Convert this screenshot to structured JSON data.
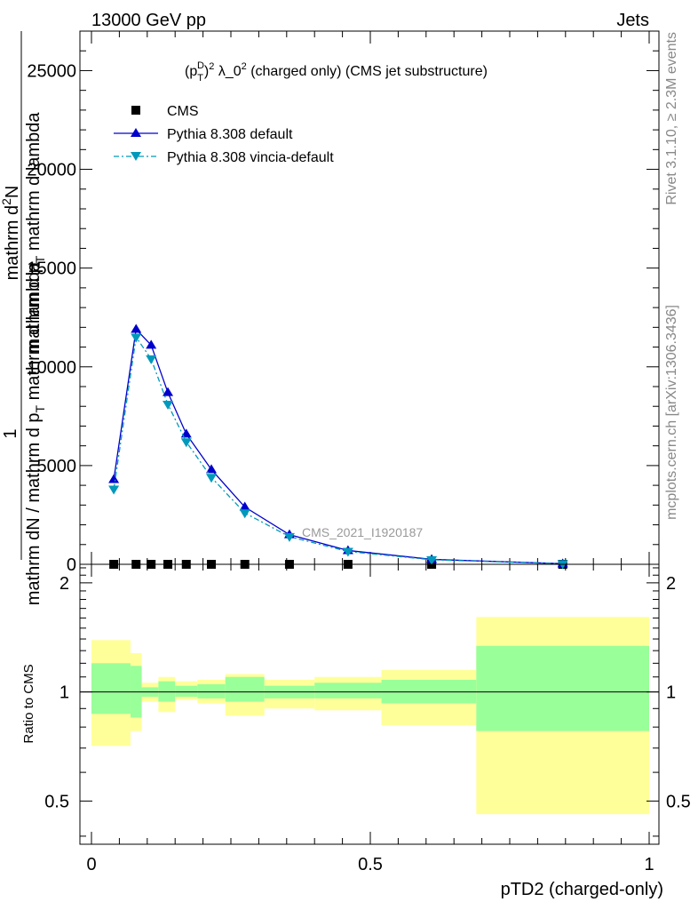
{
  "header": {
    "energy": "13000 GeV pp",
    "process": "Jets",
    "rivet": "Rivet 3.1.10, ≥ 2.3M events",
    "mcplots": "mcplots.cern.ch [arXiv:1306.3436]"
  },
  "chart_data": [
    {
      "type": "line",
      "title_parts": {
        "base": "(p",
        "sub": "T",
        "sup": "D",
        "rest": ")",
        "rest_sup": "2",
        "lambda": " λ_0",
        "lambda_sup": "2",
        "tail": " (charged only) (CMS jet substructure)"
      },
      "ylabel": "1 / mathrm dN / mathrm d p_T mathrm d lambda  |  mathrm d^2N / mathrm d p_T mathrm d lambda",
      "ylabel_lines": {
        "one": "1",
        "top_a": "mathrm d",
        "top_sup": "2",
        "top_b": "N",
        "bot_a": "mathrm d p",
        "bot_sub": "T",
        "bot_b": " mathrm d lambda",
        "den_a": "mathrm dN / mathrm d p",
        "den_sub": "T",
        "den_b": " mathrm d lambda"
      },
      "watermark": "CMS_2021_I1920187",
      "xlim": [
        0,
        1
      ],
      "ylim": [
        0,
        27000
      ],
      "yticks": [
        0,
        5000,
        10000,
        15000,
        20000,
        25000
      ],
      "ytick_labels": [
        "0",
        "5000",
        "10000",
        "15000",
        "20000",
        "25000"
      ],
      "legend_position": "top-left",
      "series": [
        {
          "name": "CMS",
          "color": "#000000",
          "marker": "square",
          "x": [
            0.04,
            0.08,
            0.107,
            0.137,
            0.17,
            0.215,
            0.275,
            0.355,
            0.46,
            0.61,
            0.845
          ],
          "y": [
            0,
            0,
            0,
            0,
            0,
            0,
            0,
            0,
            0,
            0,
            0
          ]
        },
        {
          "name": "Pythia 8.308 default",
          "color": "#0000cc",
          "marker": "triangle-up",
          "x": [
            0.04,
            0.08,
            0.107,
            0.137,
            0.17,
            0.215,
            0.275,
            0.355,
            0.46,
            0.61,
            0.845
          ],
          "y": [
            4300,
            11900,
            11100,
            8700,
            6600,
            4800,
            2900,
            1500,
            700,
            250,
            30
          ]
        },
        {
          "name": "Pythia 8.308 vincia-default",
          "color": "#0099bb",
          "marker": "triangle-down",
          "x": [
            0.04,
            0.08,
            0.107,
            0.137,
            0.17,
            0.215,
            0.275,
            0.355,
            0.46,
            0.61,
            0.845
          ],
          "y": [
            3800,
            11500,
            10400,
            8100,
            6200,
            4400,
            2600,
            1400,
            650,
            230,
            28
          ]
        }
      ]
    },
    {
      "type": "area",
      "ylabel": "Ratio to CMS",
      "xlabel": "pTD2 (charged-only)",
      "xlim": [
        0,
        1
      ],
      "ylim": [
        0.38,
        2.25
      ],
      "yticks": [
        0.5,
        1,
        2
      ],
      "ytick_labels": [
        "0.5",
        "1",
        "2"
      ],
      "xticks": [
        0,
        0.5,
        1
      ],
      "xtick_labels": [
        "0",
        "0.5",
        "1"
      ],
      "reference_line": 1,
      "bins": {
        "edges": [
          0.0,
          0.07,
          0.09,
          0.12,
          0.15,
          0.19,
          0.24,
          0.31,
          0.4,
          0.52,
          0.69,
          1.0
        ],
        "inner_low": [
          0.87,
          0.85,
          0.97,
          0.94,
          0.97,
          0.96,
          0.94,
          0.96,
          0.96,
          0.93,
          0.78
        ],
        "inner_high": [
          1.2,
          1.18,
          1.03,
          1.07,
          1.04,
          1.05,
          1.1,
          1.04,
          1.06,
          1.08,
          1.34
        ],
        "outer_low": [
          0.71,
          0.78,
          0.94,
          0.88,
          0.95,
          0.93,
          0.86,
          0.9,
          0.89,
          0.81,
          0.46
        ],
        "outer_high": [
          1.39,
          1.28,
          1.06,
          1.1,
          1.07,
          1.08,
          1.12,
          1.08,
          1.1,
          1.15,
          1.61
        ]
      },
      "colors": {
        "inner": "#99ff99",
        "outer": "#ffff99"
      }
    }
  ]
}
